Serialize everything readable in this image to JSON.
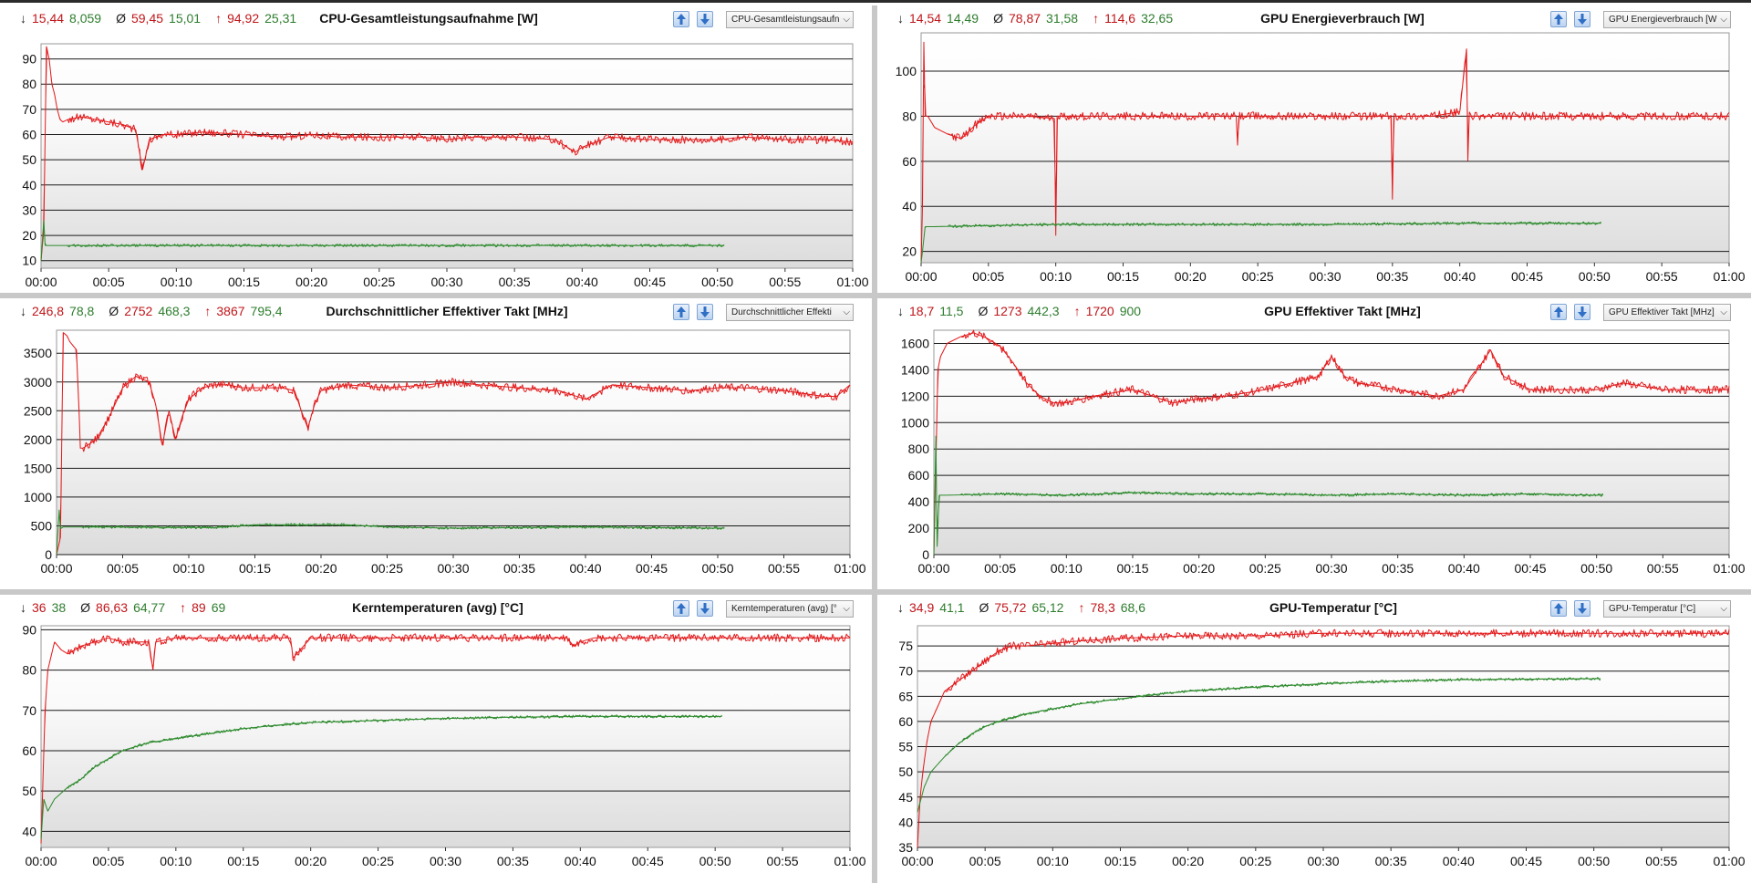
{
  "panels": [
    {
      "id": "p1",
      "stats": {
        "min_red": "15,44",
        "min_green": "8,059",
        "avg_red": "59,45",
        "avg_green": "15,01",
        "max_red": "94,92",
        "max_green": "25,31"
      },
      "title": "CPU-Gesamtleistungsaufnahme [W]",
      "select_value": "CPU-Gesamtleistungsaufn"
    },
    {
      "id": "p2",
      "stats": {
        "min_red": "14,54",
        "min_green": "14,49",
        "avg_red": "78,87",
        "avg_green": "31,58",
        "max_red": "114,6",
        "max_green": "32,65"
      },
      "title": "GPU Energieverbrauch [W]",
      "select_value": "GPU Energieverbrauch [W"
    },
    {
      "id": "p3",
      "stats": {
        "min_red": "246,8",
        "min_green": "78,8",
        "avg_red": "2752",
        "avg_green": "468,3",
        "max_red": "3867",
        "max_green": "795,4"
      },
      "title": "Durchschnittlicher Effektiver Takt [MHz]",
      "select_value": "Durchschnittlicher Effekti"
    },
    {
      "id": "p4",
      "stats": {
        "min_red": "18,7",
        "min_green": "11,5",
        "avg_red": "1273",
        "avg_green": "442,3",
        "max_red": "1720",
        "max_green": "900"
      },
      "title": "GPU Effektiver Takt [MHz]",
      "select_value": "GPU Effektiver Takt [MHz]"
    },
    {
      "id": "p5",
      "stats": {
        "min_red": "36",
        "min_green": "38",
        "avg_red": "86,63",
        "avg_green": "64,77",
        "max_red": "89",
        "max_green": "69"
      },
      "title": "Kerntemperaturen (avg) [°C]",
      "select_value": "Kerntemperaturen (avg) [°"
    },
    {
      "id": "p6",
      "stats": {
        "min_red": "34,9",
        "min_green": "41,1",
        "avg_red": "75,72",
        "avg_green": "65,12",
        "max_red": "78,3",
        "max_green": "68,6"
      },
      "title": "GPU-Temperatur [°C]",
      "select_value": "GPU-Temperatur [°C]"
    }
  ],
  "symbols": {
    "min": "↓",
    "avg": "Ø",
    "max": "↑"
  },
  "colors": {
    "red_series": "#e31a1c",
    "green_series": "#2e8b2e",
    "grid": "#000000"
  },
  "chart_data": [
    {
      "id": "p1",
      "type": "line",
      "title": "CPU-Gesamtleistungsaufnahme [W]",
      "xlabel": "",
      "ylabel": "",
      "x_ticks": [
        "00:00",
        "00:05",
        "00:10",
        "00:15",
        "00:20",
        "00:25",
        "00:30",
        "00:35",
        "00:40",
        "00:45",
        "00:50",
        "00:55",
        "01:00"
      ],
      "y_ticks": [
        10,
        20,
        30,
        40,
        50,
        60,
        70,
        80,
        90
      ],
      "xlim": [
        0,
        60
      ],
      "ylim": [
        7,
        96
      ],
      "grid": true,
      "series": [
        {
          "color": "#e31a1c",
          "x": [
            0,
            0.2,
            0.4,
            0.6,
            0.8,
            1.0,
            1.2,
            1.4,
            1.6,
            2,
            3,
            4,
            5,
            6,
            7,
            7.5,
            8,
            9,
            10,
            12,
            15,
            18,
            20,
            22,
            25,
            28,
            30,
            32,
            35,
            38,
            39.5,
            40,
            41,
            42,
            45,
            48,
            50,
            52,
            55,
            58,
            60
          ],
          "y": [
            10,
            22,
            95,
            90,
            80,
            76,
            70,
            66,
            65,
            66,
            67,
            66,
            65,
            64,
            62,
            46,
            58,
            60,
            60,
            61,
            60,
            59,
            60,
            59,
            59,
            59,
            58,
            59,
            59,
            58,
            53,
            55,
            57,
            59,
            58,
            58,
            58,
            59,
            58,
            58,
            57
          ]
        },
        {
          "color": "#2e8b2e",
          "x": [
            0,
            0.2,
            0.3,
            0.5,
            1,
            5,
            10,
            20,
            30,
            40,
            50,
            50.5
          ],
          "y": [
            10,
            26,
            16,
            16,
            16,
            16,
            16,
            16,
            16,
            16,
            16,
            16
          ]
        }
      ]
    },
    {
      "id": "p2",
      "type": "line",
      "title": "GPU Energieverbrauch [W]",
      "xlabel": "",
      "ylabel": "",
      "x_ticks": [
        "00:00",
        "00:05",
        "00:10",
        "00:15",
        "00:20",
        "00:25",
        "00:30",
        "00:35",
        "00:40",
        "00:45",
        "00:50",
        "00:55",
        "01:00"
      ],
      "y_ticks": [
        20,
        40,
        60,
        80,
        100
      ],
      "xlim": [
        0,
        60
      ],
      "ylim": [
        15,
        117
      ],
      "grid": true,
      "series": [
        {
          "color": "#e31a1c",
          "x": [
            0,
            0.1,
            0.2,
            0.3,
            0.5,
            1,
            2,
            3,
            4,
            5,
            6,
            8,
            9.9,
            10,
            10.1,
            12,
            15,
            20,
            23.4,
            23.5,
            23.6,
            30,
            34.9,
            35,
            35.1,
            38,
            40,
            40.5,
            40.6,
            40.7,
            41,
            45,
            50,
            55,
            60
          ],
          "y": [
            15,
            40,
            113,
            80,
            80,
            75,
            72,
            70,
            76,
            80,
            80,
            80,
            79,
            27,
            80,
            80,
            80,
            80,
            80,
            67,
            80,
            80,
            80,
            43,
            80,
            80,
            82,
            110,
            60,
            80,
            80,
            80,
            80,
            80,
            80
          ]
        },
        {
          "color": "#2e8b2e",
          "x": [
            0,
            0.1,
            0.3,
            0.5,
            1,
            5,
            10,
            20,
            30,
            40,
            50,
            50.5
          ],
          "y": [
            15,
            20,
            31,
            31,
            31,
            31.5,
            32,
            32,
            32,
            32.5,
            32.5,
            32.5
          ]
        }
      ]
    },
    {
      "id": "p3",
      "type": "line",
      "title": "Durchschnittlicher Effektiver Takt [MHz]",
      "xlabel": "",
      "ylabel": "",
      "x_ticks": [
        "00:00",
        "00:05",
        "00:10",
        "00:15",
        "00:20",
        "00:25",
        "00:30",
        "00:35",
        "00:40",
        "00:45",
        "00:50",
        "00:55",
        "01:00"
      ],
      "y_ticks": [
        0,
        500,
        1000,
        1500,
        2000,
        2500,
        3000,
        3500
      ],
      "xlim": [
        0,
        60
      ],
      "ylim": [
        0,
        3900
      ],
      "grid": true,
      "series": [
        {
          "color": "#e31a1c",
          "x": [
            0,
            0.3,
            0.5,
            0.8,
            1,
            1.5,
            1.7,
            1.8,
            2,
            3,
            4,
            5,
            6,
            7,
            7.5,
            8,
            8.5,
            9,
            9.5,
            10,
            10.5,
            11,
            12,
            13,
            14,
            15,
            17,
            18,
            18.5,
            19,
            19.5,
            20,
            21,
            22,
            25,
            28,
            30,
            32,
            35,
            38,
            40,
            42,
            45,
            48,
            50,
            52,
            55,
            58,
            59,
            60
          ],
          "y": [
            0,
            300,
            3860,
            3800,
            3700,
            3560,
            2500,
            1850,
            1850,
            2000,
            2400,
            2900,
            3100,
            3000,
            2600,
            1900,
            2500,
            2000,
            2400,
            2700,
            2800,
            2900,
            2950,
            2950,
            2900,
            2900,
            2900,
            2850,
            2500,
            2200,
            2600,
            2850,
            2900,
            2950,
            2900,
            2950,
            3000,
            2950,
            2900,
            2850,
            2700,
            2950,
            2900,
            2850,
            2900,
            2900,
            2850,
            2750,
            2750,
            2950
          ]
        },
        {
          "color": "#2e8b2e",
          "x": [
            0,
            0.2,
            0.3,
            0.5,
            1,
            5,
            10,
            12,
            15,
            18,
            20,
            22,
            25,
            30,
            35,
            40,
            45,
            50,
            50.5
          ],
          "y": [
            0,
            780,
            450,
            480,
            480,
            480,
            470,
            470,
            520,
            520,
            520,
            520,
            480,
            460,
            470,
            480,
            470,
            460,
            460
          ]
        }
      ]
    },
    {
      "id": "p4",
      "type": "line",
      "title": "GPU Effektiver Takt [MHz]",
      "xlabel": "",
      "ylabel": "",
      "x_ticks": [
        "00:00",
        "00:05",
        "00:10",
        "00:15",
        "00:20",
        "00:25",
        "00:30",
        "00:35",
        "00:40",
        "00:45",
        "00:50",
        "00:55",
        "01:00"
      ],
      "y_ticks": [
        0,
        200,
        400,
        600,
        800,
        1000,
        1200,
        1400,
        1600
      ],
      "xlim": [
        0,
        60
      ],
      "ylim": [
        0,
        1700
      ],
      "grid": true,
      "series": [
        {
          "color": "#e31a1c",
          "x": [
            0,
            0.2,
            0.3,
            0.5,
            1,
            2,
            3,
            4,
            5,
            6,
            7,
            8,
            9,
            10,
            12,
            15,
            18,
            20,
            22,
            25,
            27,
            29,
            30,
            31,
            32,
            35,
            38,
            40,
            41,
            42,
            43,
            45,
            48,
            50,
            52,
            55,
            58,
            60
          ],
          "y": [
            0,
            900,
            1400,
            1500,
            1600,
            1650,
            1680,
            1640,
            1580,
            1450,
            1300,
            1200,
            1150,
            1150,
            1200,
            1250,
            1150,
            1180,
            1200,
            1250,
            1300,
            1350,
            1500,
            1350,
            1300,
            1250,
            1200,
            1250,
            1400,
            1550,
            1350,
            1250,
            1250,
            1250,
            1300,
            1250,
            1250,
            1250
          ]
        },
        {
          "color": "#2e8b2e",
          "x": [
            0,
            0.15,
            0.25,
            0.4,
            1,
            5,
            10,
            15,
            20,
            25,
            30,
            35,
            40,
            45,
            50,
            50.5
          ],
          "y": [
            0,
            900,
            60,
            450,
            450,
            460,
            450,
            470,
            460,
            460,
            450,
            460,
            450,
            460,
            450,
            450
          ]
        }
      ]
    },
    {
      "id": "p5",
      "type": "line",
      "title": "Kerntemperaturen (avg) [°C]",
      "xlabel": "",
      "ylabel": "",
      "x_ticks": [
        "00:00",
        "00:05",
        "00:10",
        "00:15",
        "00:20",
        "00:25",
        "00:30",
        "00:35",
        "00:40",
        "00:45",
        "00:50",
        "00:55",
        "01:00"
      ],
      "y_ticks": [
        40,
        50,
        60,
        70,
        80,
        90
      ],
      "xlim": [
        0,
        60
      ],
      "ylim": [
        36,
        91
      ],
      "grid": true,
      "series": [
        {
          "color": "#e31a1c",
          "x": [
            0,
            0.3,
            0.5,
            1,
            1.5,
            2,
            3,
            4,
            5,
            6,
            8,
            8.3,
            8.5,
            10,
            15,
            18.5,
            18.7,
            20,
            25,
            30,
            35,
            39,
            39.5,
            40,
            41,
            45,
            50,
            55,
            60
          ],
          "y": [
            37,
            70,
            80,
            87,
            85,
            84,
            86,
            87,
            88,
            87,
            87,
            80,
            87,
            88,
            88,
            88,
            83,
            88,
            88,
            88,
            88,
            88,
            86,
            87,
            88,
            88,
            88,
            88,
            88
          ]
        },
        {
          "color": "#2e8b2e",
          "x": [
            0,
            0.2,
            0.5,
            1,
            2,
            3,
            4,
            5,
            6,
            8,
            10,
            12,
            15,
            18,
            20,
            25,
            30,
            35,
            40,
            45,
            50,
            50.5
          ],
          "y": [
            38,
            48,
            45,
            48,
            51,
            53,
            56,
            58,
            60,
            62,
            63,
            64,
            65.5,
            66.5,
            67,
            67.5,
            68,
            68.3,
            68.5,
            68.5,
            68.5,
            68.5
          ]
        }
      ]
    },
    {
      "id": "p6",
      "type": "line",
      "title": "GPU-Temperatur [°C]",
      "xlabel": "",
      "ylabel": "",
      "x_ticks": [
        "00:00",
        "00:05",
        "00:10",
        "00:15",
        "00:20",
        "00:25",
        "00:30",
        "00:35",
        "00:40",
        "00:45",
        "00:50",
        "00:55",
        "01:00"
      ],
      "y_ticks": [
        35,
        40,
        45,
        50,
        55,
        60,
        65,
        70,
        75
      ],
      "xlim": [
        0,
        60
      ],
      "ylim": [
        35,
        79
      ],
      "grid": true,
      "series": [
        {
          "color": "#e31a1c",
          "x": [
            0,
            0.2,
            0.4,
            0.7,
            1,
            1.5,
            2,
            3,
            4,
            5,
            6,
            7,
            8,
            10,
            12,
            15,
            20,
            25,
            30,
            35,
            40,
            45,
            50,
            55,
            60
          ],
          "y": [
            35,
            45,
            50,
            56,
            60,
            63,
            66,
            68,
            70,
            72,
            74,
            75,
            75,
            75.5,
            76,
            76.5,
            77,
            77,
            77.5,
            77.5,
            77.5,
            77.5,
            77.5,
            77.5,
            77.5
          ]
        },
        {
          "color": "#2e8b2e",
          "x": [
            0,
            0.2,
            0.5,
            1,
            2,
            3,
            4,
            5,
            6,
            8,
            10,
            12,
            15,
            18,
            20,
            25,
            30,
            35,
            40,
            45,
            50,
            50.5
          ],
          "y": [
            42,
            44,
            47,
            50,
            53,
            55.5,
            57.5,
            59,
            60,
            61.5,
            62.5,
            63.5,
            64.5,
            65.5,
            66,
            66.8,
            67.5,
            68,
            68.3,
            68.4,
            68.5,
            68.5
          ]
        }
      ]
    }
  ]
}
